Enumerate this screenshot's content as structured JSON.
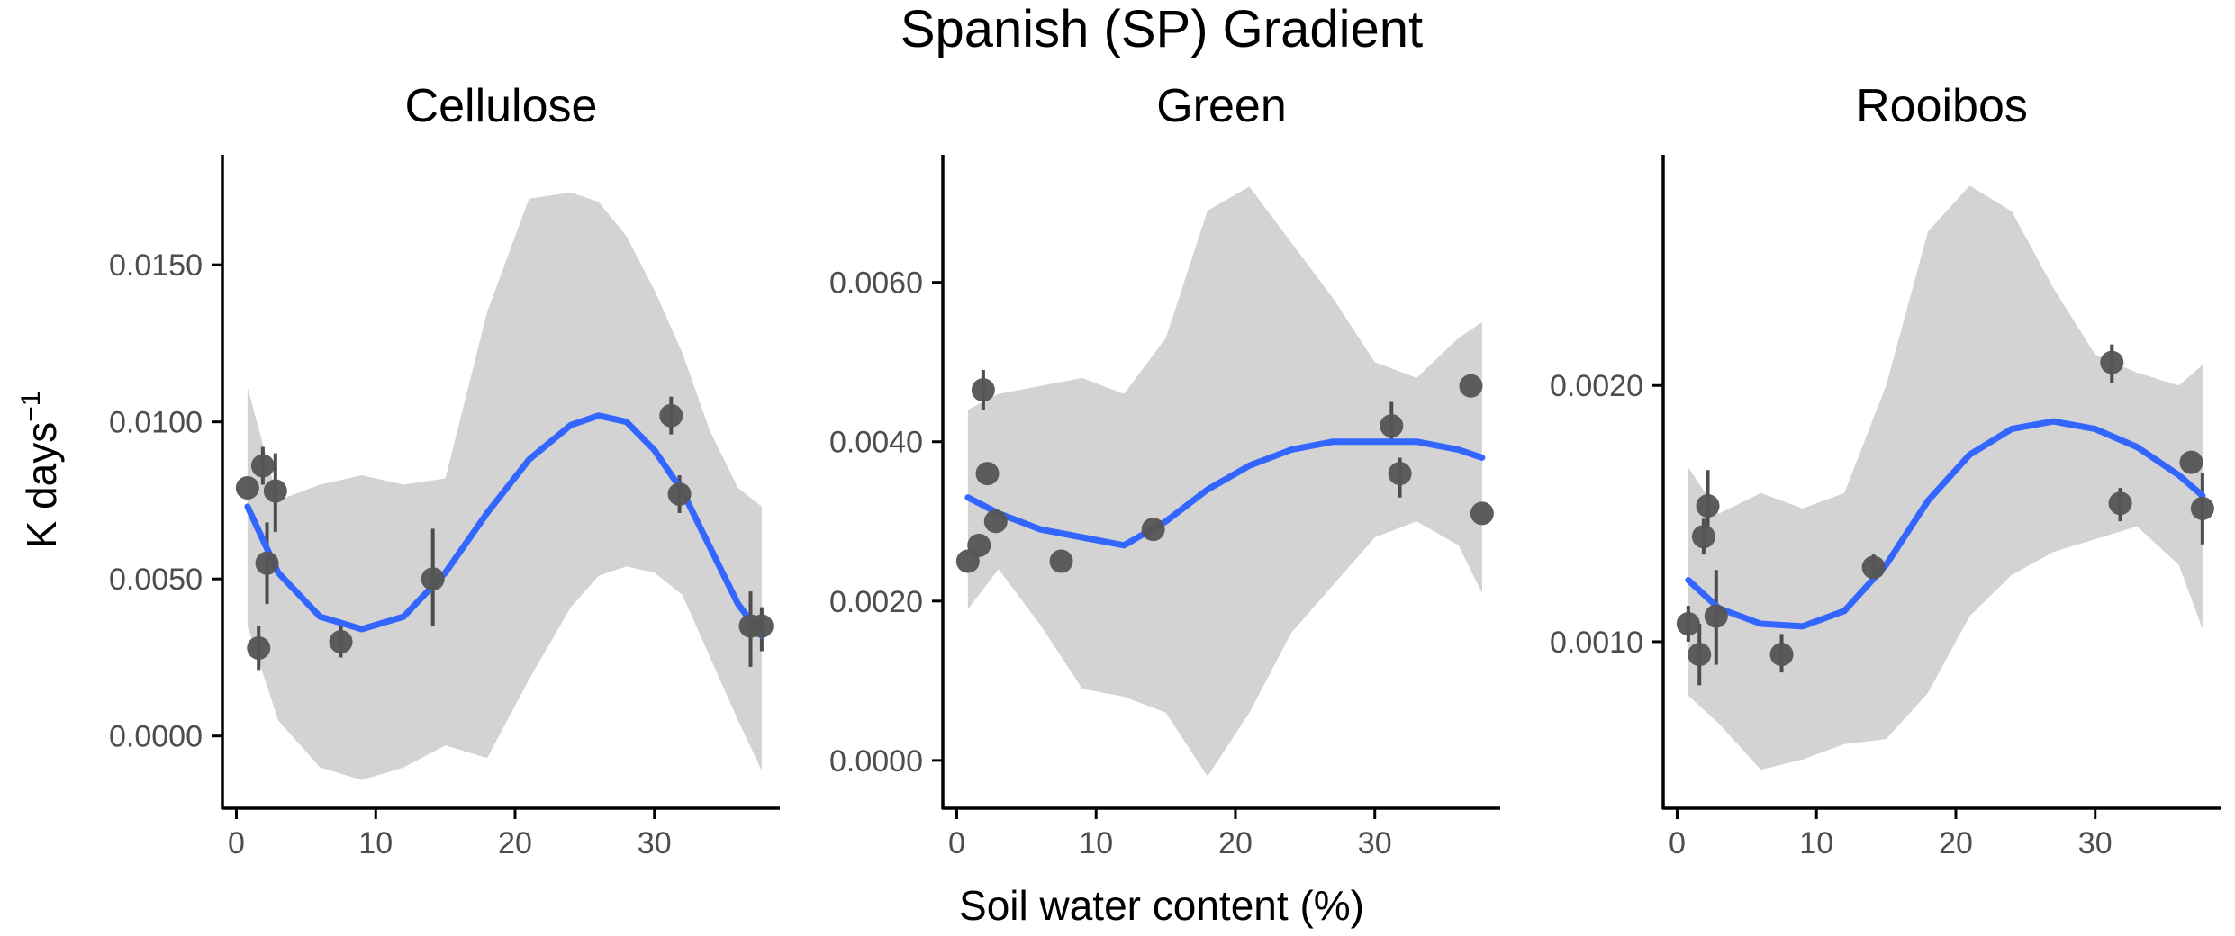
{
  "figure": {
    "title": "Spanish (SP) Gradient",
    "xlabel": "Soil water content (%)",
    "ylabel_base": "K days",
    "ylabel_sup": "−1"
  },
  "colors": {
    "point": "#555555",
    "errorbar": "#4d4d4d",
    "fit": "#3366FF",
    "ribbon": "#d3d3d3",
    "axis": "#000000",
    "tick_label": "#4d4d4d"
  },
  "chart_data": [
    {
      "type": "scatter",
      "title": "Cellulose",
      "xlim": [
        -1,
        39
      ],
      "ylim": [
        -0.0023,
        0.0185
      ],
      "xticks": [
        0,
        10,
        20,
        30
      ],
      "xtick_labels": [
        "0",
        "10",
        "20",
        "30"
      ],
      "yticks": [
        0,
        0.005,
        0.01,
        0.015
      ],
      "ytick_labels": [
        "0.0000",
        "0.0050",
        "0.0100",
        "0.0150"
      ],
      "points": [
        {
          "x": 0.8,
          "y": 0.0079,
          "lo": 0.0079,
          "hi": 0.0079
        },
        {
          "x": 1.6,
          "y": 0.0028,
          "lo": 0.0021,
          "hi": 0.0035
        },
        {
          "x": 1.9,
          "y": 0.0086,
          "lo": 0.008,
          "hi": 0.0092
        },
        {
          "x": 2.2,
          "y": 0.0055,
          "lo": 0.0042,
          "hi": 0.0068
        },
        {
          "x": 2.8,
          "y": 0.0078,
          "lo": 0.0065,
          "hi": 0.009
        },
        {
          "x": 7.5,
          "y": 0.003,
          "lo": 0.0025,
          "hi": 0.0035
        },
        {
          "x": 14.1,
          "y": 0.005,
          "lo": 0.0035,
          "hi": 0.0066
        },
        {
          "x": 31.2,
          "y": 0.0102,
          "lo": 0.0096,
          "hi": 0.0108
        },
        {
          "x": 31.8,
          "y": 0.0077,
          "lo": 0.0071,
          "hi": 0.0083
        },
        {
          "x": 36.9,
          "y": 0.0035,
          "lo": 0.0022,
          "hi": 0.0046
        },
        {
          "x": 37.7,
          "y": 0.0035,
          "lo": 0.0027,
          "hi": 0.0041
        }
      ],
      "fit": {
        "x": [
          0.8,
          3,
          6,
          9,
          12,
          15,
          18,
          21,
          24,
          26,
          28,
          30,
          32,
          34,
          36,
          37.7
        ],
        "y": [
          0.0073,
          0.0052,
          0.0038,
          0.0034,
          0.0038,
          0.0052,
          0.0071,
          0.0088,
          0.0099,
          0.0102,
          0.01,
          0.0091,
          0.0078,
          0.006,
          0.0042,
          0.0032
        ],
        "lo": [
          0.0035,
          0.0005,
          -0.001,
          -0.0014,
          -0.001,
          -0.0003,
          -0.0007,
          0.0018,
          0.0041,
          0.0051,
          0.0054,
          0.0052,
          0.0045,
          0.0025,
          0.0005,
          -0.0011
        ],
        "hi": [
          0.0111,
          0.0075,
          0.008,
          0.0083,
          0.008,
          0.0082,
          0.0135,
          0.0171,
          0.0173,
          0.017,
          0.0159,
          0.0142,
          0.0122,
          0.0097,
          0.0079,
          0.0073
        ]
      }
    },
    {
      "type": "scatter",
      "title": "Green",
      "xlim": [
        -1,
        39
      ],
      "ylim": [
        -0.0006,
        0.0076
      ],
      "xticks": [
        0,
        10,
        20,
        30
      ],
      "xtick_labels": [
        "0",
        "10",
        "20",
        "30"
      ],
      "yticks": [
        0,
        0.002,
        0.004,
        0.006
      ],
      "ytick_labels": [
        "0.0000",
        "0.0020",
        "0.0040",
        "0.0060"
      ],
      "points": [
        {
          "x": 0.8,
          "y": 0.0025,
          "lo": 0.0025,
          "hi": 0.0025
        },
        {
          "x": 1.6,
          "y": 0.0027,
          "lo": 0.0027,
          "hi": 0.0027
        },
        {
          "x": 1.9,
          "y": 0.00465,
          "lo": 0.0044,
          "hi": 0.0049
        },
        {
          "x": 2.2,
          "y": 0.0036,
          "lo": 0.0036,
          "hi": 0.0036
        },
        {
          "x": 2.8,
          "y": 0.003,
          "lo": 0.003,
          "hi": 0.003
        },
        {
          "x": 7.5,
          "y": 0.0025,
          "lo": 0.0025,
          "hi": 0.0025
        },
        {
          "x": 14.1,
          "y": 0.0029,
          "lo": 0.0029,
          "hi": 0.0029
        },
        {
          "x": 31.2,
          "y": 0.0042,
          "lo": 0.004,
          "hi": 0.0045
        },
        {
          "x": 31.8,
          "y": 0.0036,
          "lo": 0.0033,
          "hi": 0.0038
        },
        {
          "x": 36.9,
          "y": 0.0047,
          "lo": 0.0047,
          "hi": 0.0047
        },
        {
          "x": 37.7,
          "y": 0.0031,
          "lo": 0.0031,
          "hi": 0.0031
        }
      ],
      "fit": {
        "x": [
          0.8,
          3,
          6,
          9,
          12,
          15,
          18,
          21,
          24,
          27,
          30,
          33,
          36,
          37.7
        ],
        "y": [
          0.0033,
          0.0031,
          0.0029,
          0.0028,
          0.0027,
          0.003,
          0.0034,
          0.0037,
          0.0039,
          0.004,
          0.004,
          0.004,
          0.0039,
          0.0038
        ],
        "lo": [
          0.0019,
          0.0024,
          0.0017,
          0.0009,
          0.0008,
          0.0006,
          -0.0002,
          0.0006,
          0.0016,
          0.0022,
          0.0028,
          0.003,
          0.0027,
          0.0021
        ],
        "hi": [
          0.0044,
          0.0046,
          0.0047,
          0.0048,
          0.0046,
          0.0053,
          0.0069,
          0.0072,
          0.0065,
          0.0058,
          0.005,
          0.0048,
          0.0053,
          0.0055
        ]
      }
    },
    {
      "type": "scatter",
      "title": "Rooibos",
      "xlim": [
        -1,
        39
      ],
      "ylim": [
        0.00035,
        0.0029
      ],
      "xticks": [
        0,
        10,
        20,
        30
      ],
      "xtick_labels": [
        "0",
        "10",
        "20",
        "30"
      ],
      "yticks": [
        0.001,
        0.002
      ],
      "ytick_labels": [
        "0.0010",
        "0.0020"
      ],
      "points": [
        {
          "x": 0.8,
          "y": 0.00107,
          "lo": 0.001,
          "hi": 0.00114
        },
        {
          "x": 1.6,
          "y": 0.00095,
          "lo": 0.00083,
          "hi": 0.00107
        },
        {
          "x": 1.9,
          "y": 0.00141,
          "lo": 0.00134,
          "hi": 0.00148
        },
        {
          "x": 2.2,
          "y": 0.00153,
          "lo": 0.00145,
          "hi": 0.00167
        },
        {
          "x": 2.8,
          "y": 0.0011,
          "lo": 0.00091,
          "hi": 0.00128
        },
        {
          "x": 7.5,
          "y": 0.00095,
          "lo": 0.00088,
          "hi": 0.00103
        },
        {
          "x": 14.1,
          "y": 0.00129,
          "lo": 0.00124,
          "hi": 0.00134
        },
        {
          "x": 31.2,
          "y": 0.00209,
          "lo": 0.00201,
          "hi": 0.00216
        },
        {
          "x": 31.8,
          "y": 0.00154,
          "lo": 0.00147,
          "hi": 0.0016
        },
        {
          "x": 36.9,
          "y": 0.0017,
          "lo": 0.0017,
          "hi": 0.0017
        },
        {
          "x": 37.7,
          "y": 0.00152,
          "lo": 0.00138,
          "hi": 0.00166
        }
      ],
      "fit": {
        "x": [
          0.8,
          3,
          6,
          9,
          12,
          15,
          18,
          21,
          24,
          27,
          30,
          33,
          36,
          37.7
        ],
        "y": [
          0.00124,
          0.00113,
          0.00107,
          0.00106,
          0.00112,
          0.0013,
          0.00155,
          0.00173,
          0.00183,
          0.00186,
          0.00183,
          0.00176,
          0.00165,
          0.00157
        ],
        "lo": [
          0.00079,
          0.00068,
          0.0005,
          0.00054,
          0.0006,
          0.00062,
          0.0008,
          0.0011,
          0.00126,
          0.00135,
          0.0014,
          0.00145,
          0.0013,
          0.00105
        ],
        "hi": [
          0.00168,
          0.0015,
          0.00158,
          0.00152,
          0.00158,
          0.002,
          0.0026,
          0.00278,
          0.00268,
          0.00238,
          0.00212,
          0.00205,
          0.002,
          0.00208
        ]
      }
    }
  ]
}
